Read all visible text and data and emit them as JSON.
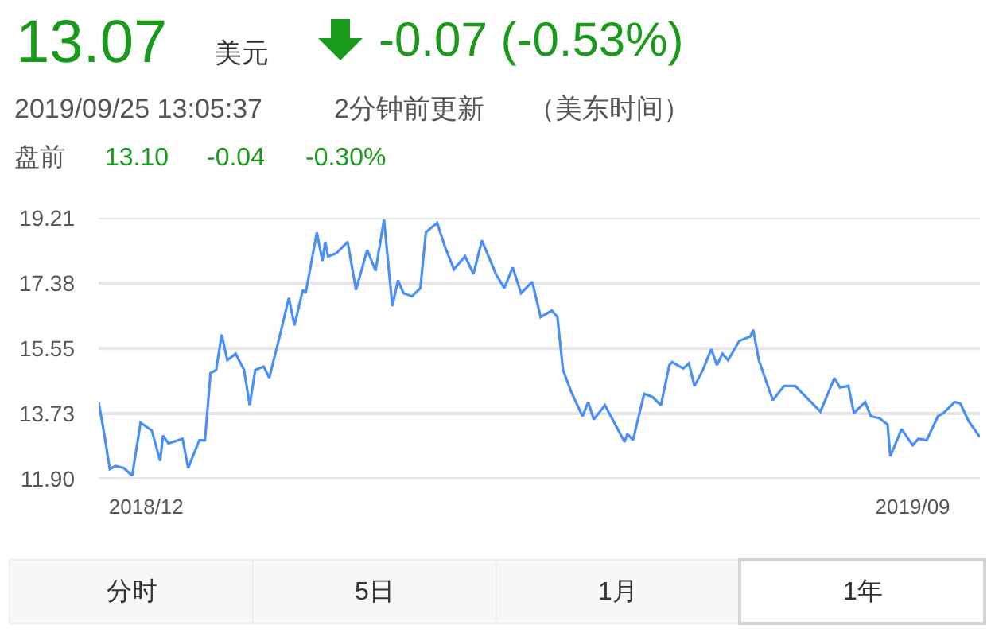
{
  "chart_data": {
    "type": "line",
    "x": [
      "2018-11-14",
      "2018-11-16",
      "2018-11-18",
      "2018-11-20",
      "2018-11-23",
      "2018-11-26",
      "2018-11-29",
      "2018-12-03",
      "2018-12-06",
      "2018-12-07",
      "2018-12-09",
      "2018-12-14",
      "2018-12-16",
      "2018-12-20",
      "2018-12-22",
      "2018-12-24",
      "2018-12-26",
      "2018-12-28",
      "2018-12-30",
      "2019-01-02",
      "2019-01-05",
      "2019-01-07",
      "2019-01-09",
      "2019-01-12",
      "2019-01-14",
      "2019-01-18",
      "2019-01-21",
      "2019-01-23",
      "2019-01-26",
      "2019-01-27",
      "2019-01-31",
      "2019-02-02",
      "2019-02-03",
      "2019-02-04",
      "2019-02-07",
      "2019-02-11",
      "2019-02-14",
      "2019-02-18",
      "2019-02-21",
      "2019-02-24",
      "2019-02-27",
      "2019-03-01",
      "2019-03-03",
      "2019-03-06",
      "2019-03-09",
      "2019-03-11",
      "2019-03-15",
      "2019-03-18",
      "2019-03-21",
      "2019-03-25",
      "2019-03-28",
      "2019-03-31",
      "2019-04-05",
      "2019-04-08",
      "2019-04-11",
      "2019-04-14",
      "2019-04-18",
      "2019-04-21",
      "2019-04-25",
      "2019-04-27",
      "2019-04-29",
      "2019-05-02",
      "2019-05-06",
      "2019-05-08",
      "2019-05-10",
      "2019-05-14",
      "2019-05-21",
      "2019-05-22",
      "2019-05-24",
      "2019-05-28",
      "2019-05-31",
      "2019-06-03",
      "2019-06-06",
      "2019-06-07",
      "2019-06-11",
      "2019-06-13",
      "2019-06-15",
      "2019-06-18",
      "2019-06-21",
      "2019-06-23",
      "2019-06-25",
      "2019-06-27",
      "2019-07-01",
      "2019-07-05",
      "2019-07-06",
      "2019-07-08",
      "2019-07-10",
      "2019-07-13",
      "2019-07-17",
      "2019-07-21",
      "2019-07-26",
      "2019-07-30",
      "2019-08-04",
      "2019-08-06",
      "2019-08-09",
      "2019-08-11",
      "2019-08-15",
      "2019-08-17",
      "2019-08-20",
      "2019-08-23",
      "2019-08-24",
      "2019-08-28",
      "2019-09-01",
      "2019-09-03",
      "2019-09-06",
      "2019-09-10",
      "2019-09-12",
      "2019-09-16",
      "2019-09-18",
      "2019-09-21",
      "2019-09-25"
    ],
    "series": [
      {
        "color": "#4a8ff5",
        "values": [
          14.05,
          13.16,
          12.17,
          12.26,
          12.2,
          11.99,
          13.47,
          13.25,
          12.4,
          13.11,
          12.89,
          13.02,
          12.2,
          12.98,
          12.98,
          14.86,
          14.95,
          15.94,
          15.22,
          15.4,
          14.95,
          13.96,
          14.95,
          15.04,
          14.73,
          15.98,
          16.97,
          16.2,
          17.19,
          17.1,
          18.8,
          18.0,
          18.54,
          18.13,
          18.22,
          18.54,
          17.19,
          18.31,
          17.73,
          19.16,
          16.74,
          17.46,
          17.1,
          17.01,
          17.24,
          18.81,
          19.07,
          18.36,
          17.77,
          18.13,
          17.64,
          18.58,
          17.64,
          17.24,
          17.82,
          17.1,
          17.42,
          16.43,
          16.61,
          16.43,
          14.95,
          14.32,
          13.65,
          14.05,
          13.56,
          13.96,
          12.93,
          13.16,
          12.98,
          14.28,
          14.19,
          13.96,
          15.08,
          15.17,
          14.99,
          15.13,
          14.5,
          14.95,
          15.53,
          15.08,
          15.4,
          15.22,
          15.76,
          15.89,
          16.07,
          15.22,
          14.77,
          14.1,
          14.5,
          14.5,
          14.1,
          13.78,
          14.72,
          14.46,
          14.5,
          13.74,
          14.05,
          13.65,
          13.6,
          13.42,
          12.53,
          13.29,
          12.84,
          13.02,
          12.98,
          13.65,
          13.74,
          14.05,
          14.01,
          13.51,
          13.07
        ]
      }
    ],
    "xlim": [
      "2018-11-14",
      "2019-09-25"
    ],
    "xticks": [
      {
        "value": "2018-12-01",
        "label": "2018/12"
      },
      {
        "value": "2019-09-01",
        "label": "2019/09"
      }
    ],
    "ylim": [
      11.9,
      19.21
    ],
    "yticks": [
      {
        "value": 11.9,
        "label": "11.90"
      },
      13.73,
      15.55,
      17.38,
      19.21
    ],
    "grid": "y",
    "line_style": "solid",
    "annotations": [
      "13.07",
      "美元",
      "-0.07 (-0.53%)",
      "2019/09/25 13:05:37",
      "2分钟前更新",
      "（美东时间）",
      "盘前",
      "13.10",
      "-0.04",
      "-0.30%",
      "分时",
      "5日",
      "1月",
      "1年"
    ]
  }
}
